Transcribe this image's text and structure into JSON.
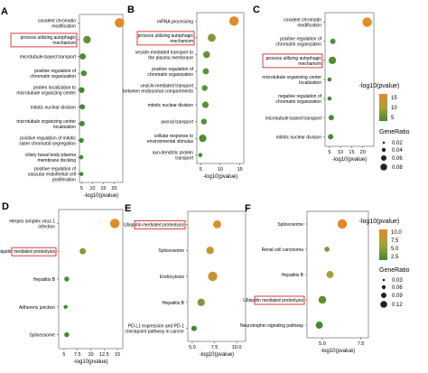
{
  "legends": {
    "top": {
      "color_title": "-log10(pvalue)",
      "color_ticks": [
        "15",
        "10",
        "5"
      ],
      "size_title": "GeneRatio",
      "size_ticks": [
        "0.02",
        "0.04",
        "0.06",
        "0.08"
      ]
    },
    "bottom": {
      "color_title": "-log10(pvalue)",
      "color_ticks": [
        "10.0",
        "7.5",
        "5.0",
        "2.5"
      ],
      "size_title": "GeneRatio",
      "size_ticks": [
        "0.03",
        "0.06",
        "0.09",
        "0.12"
      ]
    }
  },
  "colors": {
    "low": "#3f8a2e",
    "mid": "#a8a03a",
    "high": "#e08a28",
    "highlight": "#d82a2a",
    "axis": "#555555"
  },
  "chart_data": [
    {
      "panel": "A",
      "type": "scatter",
      "xlabel": "-log10(pvalue)",
      "xlim": [
        4,
        24
      ],
      "xticks": [
        5,
        10,
        15,
        20
      ],
      "categories": [
        "covalent chromatin modification",
        "process utilizing autophagic mechanism",
        "microtubule-based transport",
        "positive regulation of chromatin organization",
        "protein localization to microtubule organizing center",
        "mitotic nuclear division",
        "microtubule organizing center localization",
        "positive regulation of mitotic sister chromatid segregation",
        "ciliary basal body-plasma membrane docking",
        "positive regulation of vascular endothelial cell proliferation"
      ],
      "x": [
        22.5,
        7.5,
        5.5,
        6.0,
        5.0,
        5.3,
        5.2,
        4.9,
        4.8,
        4.9
      ],
      "gene_ratio": [
        0.09,
        0.05,
        0.03,
        0.025,
        0.025,
        0.02,
        0.02,
        0.015,
        0.01,
        0.008
      ],
      "highlight": [
        1
      ]
    },
    {
      "panel": "B",
      "type": "scatter",
      "xlabel": "-log10(pvalue)",
      "xlim": [
        4,
        16
      ],
      "xticks": [
        5,
        10,
        15
      ],
      "categories": [
        "mRNA processing",
        "process utilizing autophagic mechanism",
        "vesicle-mediated transport to the plasma membrane",
        "positive regulation of chromatin organization",
        "vesicle-mediated transport between endosomal compartments",
        "mitotic nuclear division",
        "axonal transport",
        "cellular response to environmental stimulus",
        "axo-dendritic protein transport"
      ],
      "x": [
        13.5,
        7.8,
        6.5,
        6.3,
        6.0,
        6.2,
        5.8,
        5.5,
        4.9
      ],
      "gene_ratio": [
        0.09,
        0.06,
        0.04,
        0.03,
        0.025,
        0.035,
        0.025,
        0.05,
        0.008
      ],
      "highlight": [
        1
      ]
    },
    {
      "panel": "C",
      "type": "scatter",
      "xlabel": "-log10(pvalue)",
      "xlim": [
        3,
        25
      ],
      "xticks": [
        5,
        10,
        15,
        20
      ],
      "categories": [
        "covalent chromatin modification",
        "positive regulation of chromatin organization",
        "process utilizing autophagic mechanism",
        "microtubule organizing center localization",
        "negative regulation of chromatin organization",
        "microtubule-based transport",
        "mitotic nuclear division"
      ],
      "x": [
        22.0,
        6.5,
        6.3,
        5.0,
        5.0,
        5.8,
        5.5
      ],
      "gene_ratio": [
        0.09,
        0.02,
        0.05,
        0.008,
        0.008,
        0.02,
        0.02
      ],
      "highlight": [
        2
      ]
    },
    {
      "panel": "D",
      "type": "scatter",
      "xlabel": "-log10(pvalue)",
      "xlim": [
        4,
        16
      ],
      "xticks": [
        5,
        7.5,
        10,
        12.5,
        15
      ],
      "categories": [
        "Herpes simplex virus 1 infection",
        "Ubiquitin mediated proteolysis",
        "Hepatitis B",
        "Adherens junction",
        "Spliceosome"
      ],
      "x": [
        14.5,
        8.5,
        5.5,
        5.3,
        5.5
      ],
      "gene_ratio": [
        0.12,
        0.04,
        0.02,
        0.01,
        0.02
      ],
      "highlight": [
        1
      ]
    },
    {
      "panel": "E",
      "type": "scatter",
      "xlabel": "-log10(pvalue)",
      "xlim": [
        4.5,
        11
      ],
      "xticks": [
        5.0,
        7.5,
        10.0
      ],
      "categories": [
        "Ubiquitin-mediated proteolysis",
        "Spliceosome",
        "Endocytosis",
        "Hepatitis B",
        "PD-L1 expression and PD-1 checkpoint pathway in cancer"
      ],
      "x": [
        7.8,
        7.0,
        7.3,
        6.0,
        5.2
      ],
      "gene_ratio": [
        0.06,
        0.05,
        0.09,
        0.05,
        0.02
      ],
      "highlight": [
        0
      ]
    },
    {
      "panel": "F",
      "type": "scatter",
      "xlabel": "-log10(pvalue)",
      "xlim": [
        4,
        8
      ],
      "xticks": [
        5.0,
        7.5
      ],
      "categories": [
        "Spliceosome",
        "Renal cell carcinoma",
        "Hepatitis B",
        "Ubiquitin mediated proteolysis",
        "Neurotrophin signaling pathway"
      ],
      "x": [
        6.3,
        5.3,
        5.5,
        5.0,
        4.8
      ],
      "gene_ratio": [
        0.1,
        0.02,
        0.05,
        0.06,
        0.05
      ],
      "highlight": [
        3
      ]
    }
  ]
}
